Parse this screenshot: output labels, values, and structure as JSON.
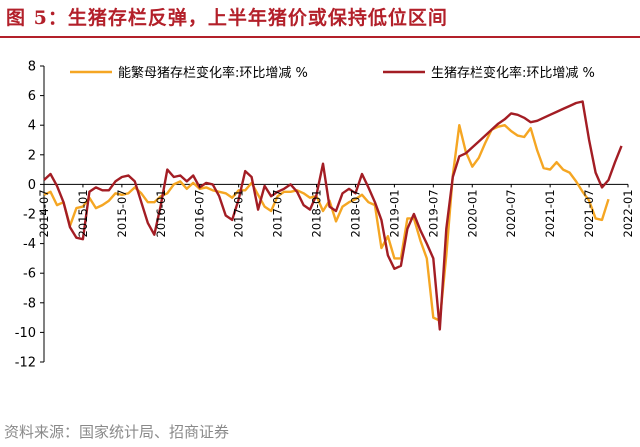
{
  "title": "图 5：生猪存栏反弹，上半年猪价或保持低位区间",
  "source": "资料来源：国家统计局、招商证券",
  "colors": {
    "title": "#b3202a",
    "series_a": "#f5a623",
    "series_b": "#a31d24"
  },
  "chart_data": {
    "type": "line",
    "ylim": [
      -12,
      8
    ],
    "yticks": [
      8,
      6,
      4,
      2,
      0,
      -2,
      -4,
      -6,
      -8,
      -10,
      -12
    ],
    "xticks": [
      "2014-07",
      "2015-01",
      "2015-07",
      "2016-01",
      "2016-07",
      "2017-01",
      "2017-07",
      "2018-01",
      "2018-07",
      "2019-01",
      "2019-07",
      "2020-01",
      "2020-07",
      "2021-01",
      "2021-07",
      "2022-01"
    ],
    "legend_position": "top",
    "series": [
      {
        "name": "能繁母猪存栏变化率:环比增减 %",
        "color": "#f5a623",
        "points": [
          [
            "2014-07",
            -0.7
          ],
          [
            "2014-08",
            -0.5
          ],
          [
            "2014-09",
            -1.4
          ],
          [
            "2014-10",
            -1.2
          ],
          [
            "2014-11",
            -2.8
          ],
          [
            "2014-12",
            -1.6
          ],
          [
            "2015-01",
            -1.5
          ],
          [
            "2015-02",
            -0.9
          ],
          [
            "2015-03",
            -1.6
          ],
          [
            "2015-04",
            -1.4
          ],
          [
            "2015-05",
            -1.1
          ],
          [
            "2015-06",
            -0.6
          ],
          [
            "2015-07",
            -0.7
          ],
          [
            "2015-08",
            -0.6
          ],
          [
            "2015-09",
            -0.2
          ],
          [
            "2015-10",
            -0.6
          ],
          [
            "2015-11",
            -1.2
          ],
          [
            "2015-12",
            -1.2
          ],
          [
            "2016-01",
            -0.8
          ],
          [
            "2016-02",
            -0.6
          ],
          [
            "2016-03",
            0.0
          ],
          [
            "2016-04",
            0.2
          ],
          [
            "2016-05",
            -0.3
          ],
          [
            "2016-06",
            0.1
          ],
          [
            "2016-07",
            -0.3
          ],
          [
            "2016-08",
            -0.2
          ],
          [
            "2016-09",
            -0.4
          ],
          [
            "2016-10",
            -0.5
          ],
          [
            "2016-11",
            -0.6
          ],
          [
            "2016-12",
            -0.9
          ],
          [
            "2017-01",
            -0.4
          ],
          [
            "2017-02",
            -0.4
          ],
          [
            "2017-03",
            0.1
          ],
          [
            "2017-04",
            -0.7
          ],
          [
            "2017-05",
            -1.5
          ],
          [
            "2017-06",
            -1.8
          ],
          [
            "2017-07",
            -0.8
          ],
          [
            "2017-08",
            -0.5
          ],
          [
            "2017-09",
            -0.5
          ],
          [
            "2017-10",
            -0.4
          ],
          [
            "2017-11",
            -0.6
          ],
          [
            "2017-12",
            -0.9
          ],
          [
            "2018-01",
            -0.8
          ],
          [
            "2018-02",
            -1.8
          ],
          [
            "2018-03",
            -1.1
          ],
          [
            "2018-04",
            -2.5
          ],
          [
            "2018-05",
            -1.5
          ],
          [
            "2018-06",
            -1.2
          ],
          [
            "2018-07",
            -1.0
          ],
          [
            "2018-08",
            -0.7
          ],
          [
            "2018-09",
            -1.2
          ],
          [
            "2018-10",
            -1.4
          ],
          [
            "2018-11",
            -4.3
          ],
          [
            "2018-12",
            -3.5
          ],
          [
            "2019-01",
            -5.0
          ],
          [
            "2019-02",
            -5.0
          ],
          [
            "2019-03",
            -2.3
          ],
          [
            "2019-04",
            -2.3
          ],
          [
            "2019-05",
            -3.8
          ],
          [
            "2019-06",
            -5.0
          ],
          [
            "2019-07",
            -9.0
          ],
          [
            "2019-08",
            -9.2
          ],
          [
            "2019-09",
            -4.8
          ],
          [
            "2019-10",
            0.6
          ],
          [
            "2019-11",
            4.0
          ],
          [
            "2019-12",
            2.2
          ],
          [
            "2020-01",
            1.2
          ],
          [
            "2020-02",
            1.8
          ],
          [
            "2020-03",
            2.8
          ],
          [
            "2020-04",
            3.7
          ],
          [
            "2020-05",
            3.9
          ],
          [
            "2020-06",
            4.0
          ],
          [
            "2020-07",
            3.6
          ],
          [
            "2020-08",
            3.3
          ],
          [
            "2020-09",
            3.2
          ],
          [
            "2020-10",
            3.8
          ],
          [
            "2020-11",
            2.3
          ],
          [
            "2020-12",
            1.1
          ],
          [
            "2021-01",
            1.0
          ],
          [
            "2021-02",
            1.5
          ],
          [
            "2021-03",
            1.0
          ],
          [
            "2021-04",
            0.8
          ],
          [
            "2021-05",
            0.2
          ],
          [
            "2021-06",
            -0.5
          ],
          [
            "2021-07",
            -1.1
          ],
          [
            "2021-08",
            -2.3
          ],
          [
            "2021-09",
            -2.4
          ],
          [
            "2021-10",
            -1.0
          ]
        ]
      },
      {
        "name": "生猪存栏变化率:环比增减 %",
        "color": "#a31d24",
        "points": [
          [
            "2014-07",
            0.3
          ],
          [
            "2014-08",
            0.7
          ],
          [
            "2014-09",
            -0.1
          ],
          [
            "2014-10",
            -1.2
          ],
          [
            "2014-11",
            -2.9
          ],
          [
            "2014-12",
            -3.6
          ],
          [
            "2015-01",
            -3.7
          ],
          [
            "2015-02",
            -0.5
          ],
          [
            "2015-03",
            -0.2
          ],
          [
            "2015-04",
            -0.4
          ],
          [
            "2015-05",
            -0.4
          ],
          [
            "2015-06",
            0.2
          ],
          [
            "2015-07",
            0.5
          ],
          [
            "2015-08",
            0.6
          ],
          [
            "2015-09",
            0.2
          ],
          [
            "2015-10",
            -1.2
          ],
          [
            "2015-11",
            -2.6
          ],
          [
            "2015-12",
            -3.4
          ],
          [
            "2016-01",
            -1.4
          ],
          [
            "2016-02",
            1.0
          ],
          [
            "2016-03",
            0.5
          ],
          [
            "2016-04",
            0.6
          ],
          [
            "2016-05",
            0.2
          ],
          [
            "2016-06",
            0.6
          ],
          [
            "2016-07",
            -0.2
          ],
          [
            "2016-08",
            0.1
          ],
          [
            "2016-09",
            0.0
          ],
          [
            "2016-10",
            -0.8
          ],
          [
            "2016-11",
            -2.1
          ],
          [
            "2016-12",
            -2.4
          ],
          [
            "2017-01",
            -1.0
          ],
          [
            "2017-02",
            0.9
          ],
          [
            "2017-03",
            0.5
          ],
          [
            "2017-04",
            -1.7
          ],
          [
            "2017-05",
            -0.1
          ],
          [
            "2017-06",
            -0.8
          ],
          [
            "2017-07",
            -0.5
          ],
          [
            "2017-08",
            -0.3
          ],
          [
            "2017-09",
            0.0
          ],
          [
            "2017-10",
            -0.5
          ],
          [
            "2017-11",
            -1.4
          ],
          [
            "2017-12",
            -1.7
          ],
          [
            "2018-01",
            -0.7
          ],
          [
            "2018-02",
            1.4
          ],
          [
            "2018-03",
            -1.5
          ],
          [
            "2018-04",
            -1.8
          ],
          [
            "2018-05",
            -0.6
          ],
          [
            "2018-06",
            -0.3
          ],
          [
            "2018-07",
            -0.6
          ],
          [
            "2018-08",
            0.7
          ],
          [
            "2018-09",
            -0.2
          ],
          [
            "2018-10",
            -1.2
          ],
          [
            "2018-11",
            -2.4
          ],
          [
            "2018-12",
            -4.8
          ],
          [
            "2019-01",
            -5.7
          ],
          [
            "2019-02",
            -5.5
          ],
          [
            "2019-03",
            -3.0
          ],
          [
            "2019-04",
            -2.0
          ],
          [
            "2019-05",
            -3.1
          ],
          [
            "2019-06",
            -4.0
          ],
          [
            "2019-07",
            -5.0
          ],
          [
            "2019-08",
            -9.8
          ],
          [
            "2019-09",
            -3.0
          ],
          [
            "2019-10",
            0.5
          ],
          [
            "2019-11",
            1.9
          ],
          [
            "2019-12",
            2.1
          ],
          [
            "2020-01",
            2.5
          ],
          [
            "2020-02",
            2.9
          ],
          [
            "2020-03",
            3.3
          ],
          [
            "2020-04",
            3.7
          ],
          [
            "2020-05",
            4.1
          ],
          [
            "2020-06",
            4.4
          ],
          [
            "2020-07",
            4.8
          ],
          [
            "2020-08",
            4.7
          ],
          [
            "2020-09",
            4.5
          ],
          [
            "2020-10",
            4.2
          ],
          [
            "2020-11",
            4.3
          ],
          [
            "2020-12",
            4.5
          ],
          [
            "2021-01",
            4.7
          ],
          [
            "2021-02",
            4.9
          ],
          [
            "2021-03",
            5.1
          ],
          [
            "2021-04",
            5.3
          ],
          [
            "2021-05",
            5.5
          ],
          [
            "2021-06",
            5.6
          ],
          [
            "2021-07",
            3.0
          ],
          [
            "2021-08",
            0.8
          ],
          [
            "2021-09",
            -0.2
          ],
          [
            "2021-10",
            0.3
          ],
          [
            "2021-11",
            1.5
          ],
          [
            "2021-12",
            2.6
          ]
        ]
      }
    ]
  }
}
